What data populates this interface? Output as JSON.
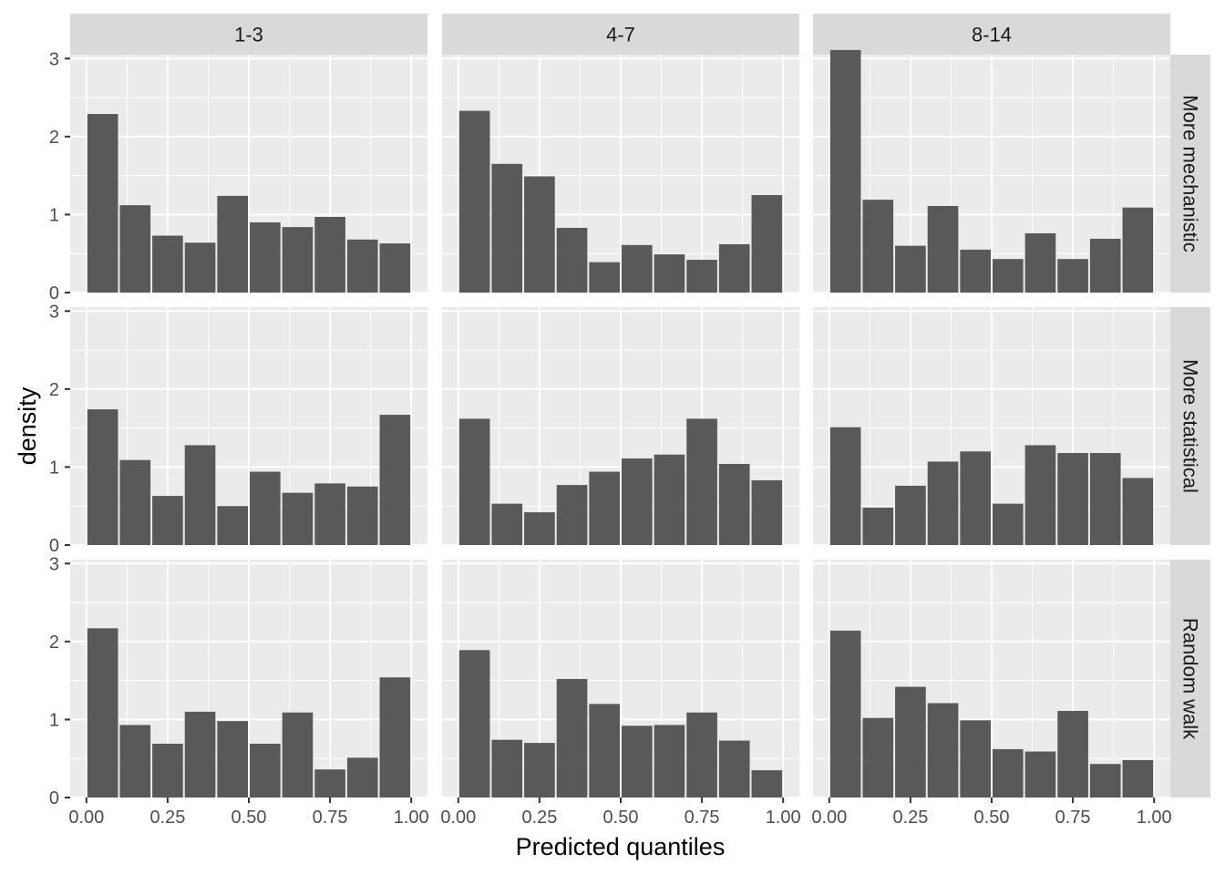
{
  "chart_data": {
    "type": "bar",
    "subtype": "faceted-histogram",
    "xlabel": "Predicted quantiles",
    "ylabel": "density",
    "x_ticks": [
      "0.00",
      "0.25",
      "0.50",
      "0.75",
      "1.00"
    ],
    "y_ticks": [
      "0",
      "1",
      "2",
      "3"
    ],
    "xlim": [
      -0.05,
      1.05
    ],
    "ylim": [
      0,
      3.05
    ],
    "bin_width": 0.1,
    "bin_centers": [
      0.05,
      0.15,
      0.25,
      0.35,
      0.45,
      0.55,
      0.65,
      0.75,
      0.85,
      0.95
    ],
    "col_facets": [
      "1-3",
      "4-7",
      "8-14"
    ],
    "row_facets": [
      "More mechanistic",
      "More statistical",
      "Random walk"
    ],
    "grid": true,
    "colors": {
      "bar": "#595959",
      "panel_bg": "#ebebeb",
      "grid": "#ffffff",
      "strip_bg": "#d9d9d9"
    },
    "panels": [
      {
        "col": "1-3",
        "row": "More mechanistic",
        "values": [
          2.29,
          1.12,
          0.73,
          0.64,
          1.24,
          0.9,
          0.84,
          0.97,
          0.68,
          0.63
        ]
      },
      {
        "col": "4-7",
        "row": "More mechanistic",
        "values": [
          2.33,
          1.65,
          1.49,
          0.83,
          0.39,
          0.61,
          0.49,
          0.42,
          0.62,
          1.25
        ]
      },
      {
        "col": "8-14",
        "row": "More mechanistic",
        "values": [
          3.11,
          1.19,
          0.6,
          1.11,
          0.55,
          0.43,
          0.76,
          0.43,
          0.69,
          1.09
        ]
      },
      {
        "col": "1-3",
        "row": "More statistical",
        "values": [
          1.74,
          1.09,
          0.63,
          1.28,
          0.5,
          0.94,
          0.67,
          0.79,
          0.75,
          1.67
        ]
      },
      {
        "col": "4-7",
        "row": "More statistical",
        "values": [
          1.62,
          0.53,
          0.42,
          0.77,
          0.94,
          1.11,
          1.16,
          1.62,
          1.04,
          0.83
        ]
      },
      {
        "col": "8-14",
        "row": "More statistical",
        "values": [
          1.51,
          0.48,
          0.76,
          1.07,
          1.2,
          0.53,
          1.28,
          1.18,
          1.18,
          0.86
        ]
      },
      {
        "col": "1-3",
        "row": "Random walk",
        "values": [
          2.17,
          0.93,
          0.69,
          1.1,
          0.98,
          0.69,
          1.09,
          0.36,
          0.51,
          1.54
        ]
      },
      {
        "col": "4-7",
        "row": "Random walk",
        "values": [
          1.89,
          0.74,
          0.7,
          1.52,
          1.2,
          0.92,
          0.93,
          1.09,
          0.73,
          0.35
        ]
      },
      {
        "col": "8-14",
        "row": "Random walk",
        "values": [
          2.14,
          1.02,
          1.42,
          1.21,
          0.99,
          0.62,
          0.59,
          1.11,
          0.43,
          0.48
        ]
      }
    ]
  }
}
